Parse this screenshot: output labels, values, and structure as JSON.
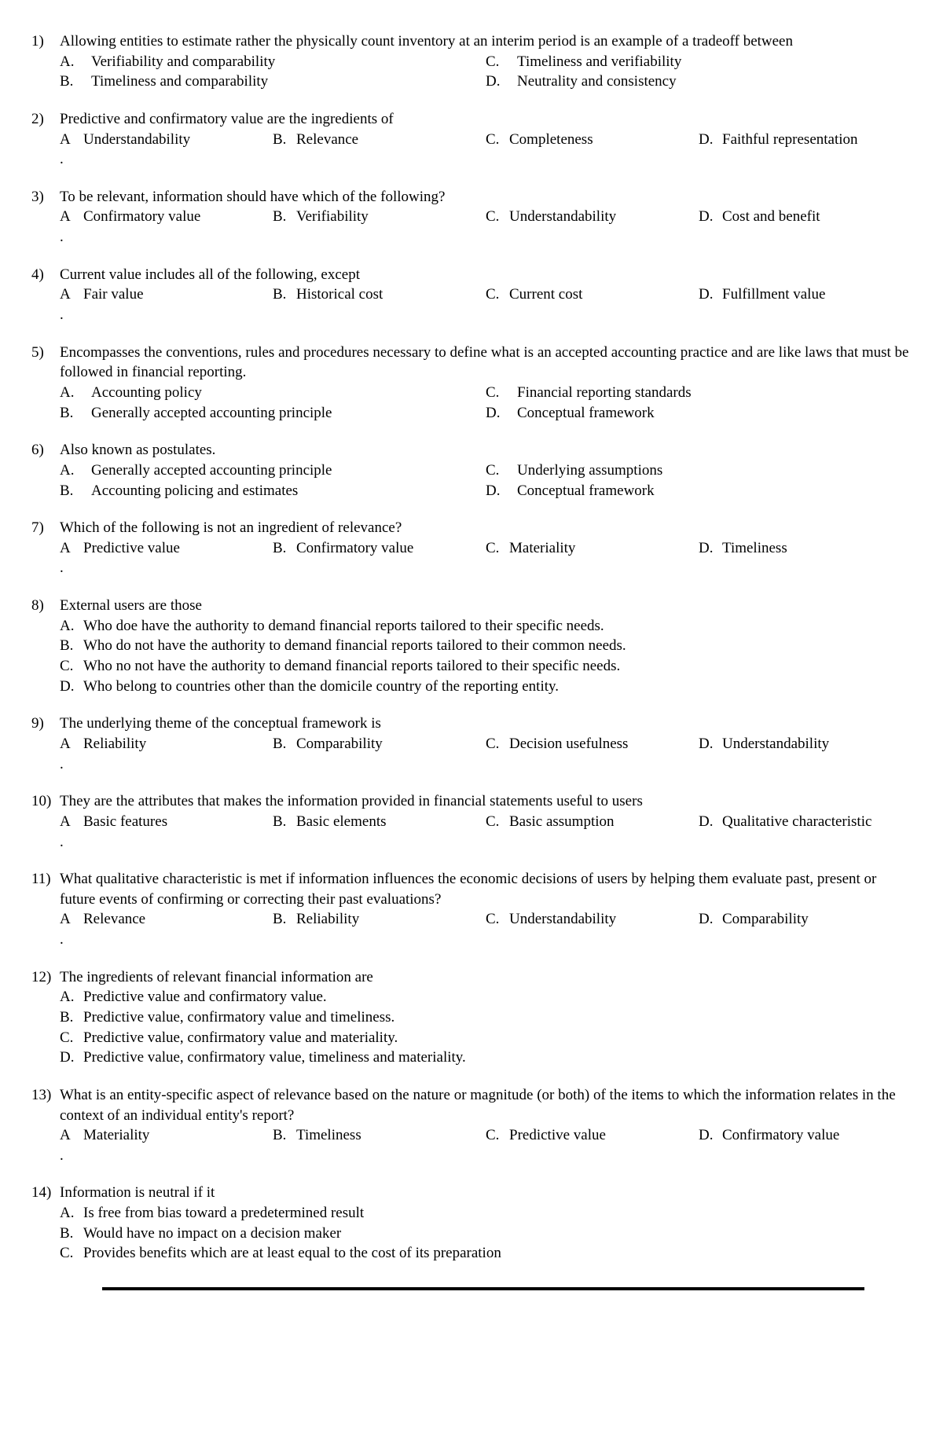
{
  "questions": [
    {
      "number": "1)",
      "stem": "Allowing entities to estimate rather the physically count inventory at an interim period is an example of a tradeoff between",
      "layout": "2col",
      "useDot": false,
      "choices": [
        {
          "letter": "A.",
          "text": "Verifiability and comparability"
        },
        {
          "letter": "B.",
          "text": "Timeliness and comparability"
        },
        {
          "letter": "C.",
          "text": "Timeliness and verifiability"
        },
        {
          "letter": "D.",
          "text": "Neutrality and consistency"
        }
      ]
    },
    {
      "number": "2)",
      "stem": "Predictive and confirmatory value are the ingredients of",
      "layout": "4col",
      "useDot": true,
      "choices": [
        {
          "letter": "A",
          "text": "Understandability"
        },
        {
          "letter": "B.",
          "text": "Relevance"
        },
        {
          "letter": "C.",
          "text": "Completeness"
        },
        {
          "letter": "D.",
          "text": "Faithful representation"
        }
      ]
    },
    {
      "number": "3)",
      "stem": "To be relevant, information should have which of the following?",
      "layout": "4col",
      "useDot": true,
      "choices": [
        {
          "letter": "A",
          "text": "Confirmatory value"
        },
        {
          "letter": "B.",
          "text": "Verifiability"
        },
        {
          "letter": "C.",
          "text": "Understandability"
        },
        {
          "letter": "D.",
          "text": "Cost and benefit"
        }
      ]
    },
    {
      "number": "4)",
      "stem": "Current value includes all of the following, except",
      "layout": "4col",
      "useDot": true,
      "choices": [
        {
          "letter": "A",
          "text": "Fair value"
        },
        {
          "letter": "B.",
          "text": "Historical cost"
        },
        {
          "letter": "C.",
          "text": "Current cost"
        },
        {
          "letter": "D.",
          "text": "Fulfillment value"
        }
      ]
    },
    {
      "number": "5)",
      "stem": "Encompasses the conventions, rules and procedures necessary to define what is an accepted accounting practice and are like laws that must be followed in financial reporting.",
      "layout": "2col",
      "useDot": false,
      "choices": [
        {
          "letter": "A.",
          "text": "Accounting policy"
        },
        {
          "letter": "B.",
          "text": "Generally accepted accounting principle"
        },
        {
          "letter": "C.",
          "text": "Financial reporting standards"
        },
        {
          "letter": "D.",
          "text": "Conceptual framework"
        }
      ]
    },
    {
      "number": "6)",
      "stem": "Also known as postulates.",
      "layout": "2col",
      "useDot": false,
      "choices": [
        {
          "letter": "A.",
          "text": "Generally accepted accounting principle"
        },
        {
          "letter": "B.",
          "text": "Accounting policing and estimates"
        },
        {
          "letter": "C.",
          "text": "Underlying assumptions"
        },
        {
          "letter": "D.",
          "text": "Conceptual framework"
        }
      ]
    },
    {
      "number": "7)",
      "stem": "Which of the following is not an ingredient of relevance?",
      "layout": "4col",
      "useDot": true,
      "choices": [
        {
          "letter": "A",
          "text": "Predictive value"
        },
        {
          "letter": "B.",
          "text": "Confirmatory value"
        },
        {
          "letter": "C.",
          "text": "Materiality"
        },
        {
          "letter": "D.",
          "text": "Timeliness"
        }
      ]
    },
    {
      "number": "8)",
      "stem": "External users are those",
      "layout": "1col",
      "useDot": false,
      "choices": [
        {
          "letter": "A.",
          "text": "Who doe have the authority to demand financial reports tailored to their specific needs."
        },
        {
          "letter": "B.",
          "text": "Who do not have the authority to demand financial reports tailored to their common needs."
        },
        {
          "letter": "C.",
          "text": "Who no not have the authority to demand financial reports tailored to their specific needs."
        },
        {
          "letter": "D.",
          "text": "Who belong to countries other than the domicile country of the reporting entity."
        }
      ]
    },
    {
      "number": "9)",
      "stem": "The underlying theme of the conceptual framework is",
      "layout": "4col",
      "useDot": true,
      "choices": [
        {
          "letter": "A",
          "text": "Reliability"
        },
        {
          "letter": "B.",
          "text": "Comparability"
        },
        {
          "letter": "C.",
          "text": "Decision usefulness"
        },
        {
          "letter": "D.",
          "text": "Understandability"
        }
      ]
    },
    {
      "number": "10)",
      "stem": "They are the attributes that makes the information provided in financial statements useful to users",
      "layout": "4col",
      "useDot": true,
      "choices": [
        {
          "letter": "A",
          "text": "Basic features"
        },
        {
          "letter": "B.",
          "text": "Basic elements"
        },
        {
          "letter": "C.",
          "text": "Basic assumption"
        },
        {
          "letter": "D.",
          "text": "Qualitative characteristic"
        }
      ]
    },
    {
      "number": "11)",
      "stem": "What qualitative characteristic is met if information influences the economic decisions of users by helping them evaluate past, present or future events of confirming or correcting their past evaluations?",
      "layout": "4col",
      "useDot": true,
      "choices": [
        {
          "letter": "A",
          "text": "Relevance"
        },
        {
          "letter": "B.",
          "text": "Reliability"
        },
        {
          "letter": "C.",
          "text": "Understandability"
        },
        {
          "letter": "D.",
          "text": "Comparability"
        }
      ]
    },
    {
      "number": "12)",
      "stem": "The ingredients of relevant financial information are",
      "layout": "1col",
      "useDot": false,
      "choices": [
        {
          "letter": "A.",
          "text": "Predictive value and confirmatory value."
        },
        {
          "letter": "B.",
          "text": "Predictive value, confirmatory value and timeliness."
        },
        {
          "letter": "C.",
          "text": "Predictive value, confirmatory value and materiality."
        },
        {
          "letter": "D.",
          "text": "Predictive value, confirmatory value, timeliness and materiality."
        }
      ]
    },
    {
      "number": "13)",
      "stem": "What is an entity-specific aspect of relevance based on the nature or magnitude (or both) of the items to which the information relates in the context of an individual entity's report?",
      "layout": "4col",
      "useDot": true,
      "choices": [
        {
          "letter": "A",
          "text": "Materiality"
        },
        {
          "letter": "B.",
          "text": "Timeliness"
        },
        {
          "letter": "C.",
          "text": "Predictive value"
        },
        {
          "letter": "D.",
          "text": "Confirmatory value"
        }
      ]
    },
    {
      "number": "14)",
      "stem": "Information is neutral if it",
      "layout": "1col",
      "useDot": false,
      "choices": [
        {
          "letter": "A.",
          "text": "Is free from bias toward a predetermined result"
        },
        {
          "letter": "B.",
          "text": "Would have no impact on a decision maker"
        },
        {
          "letter": "C.",
          "text": "Provides benefits which are at least equal to the cost of its preparation"
        }
      ]
    }
  ]
}
